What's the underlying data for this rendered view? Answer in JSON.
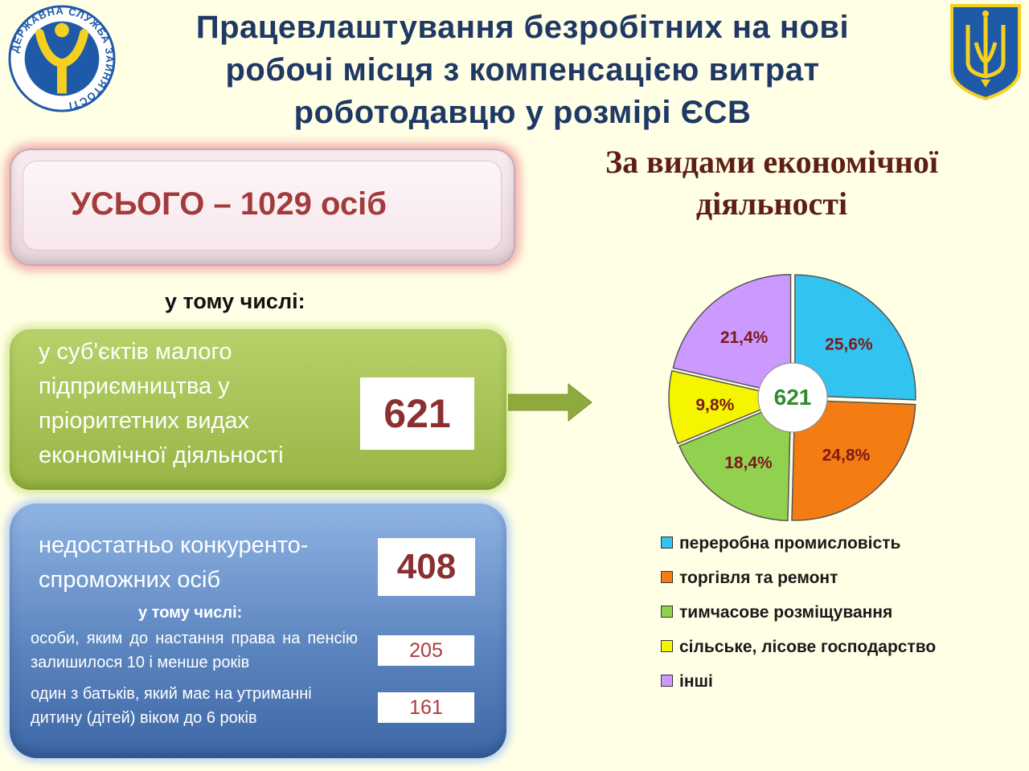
{
  "header": {
    "title_lines": [
      "Працевлаштування безробітних на нові",
      "робочі місця з компенсацією витрат",
      "роботодавцю у розмірі ЄСВ"
    ],
    "logo_text": "ДЕРЖАВНА СЛУЖБА ЗАЙНЯТОСТІ"
  },
  "total": {
    "text": "УСЬОГО – 1029 осіб"
  },
  "including_label": "у тому числі:",
  "small_business": {
    "text": "у суб'єктів малого підприємництва у пріоритетних видах економічної діяльності",
    "value": "621"
  },
  "uncompetitive": {
    "text": "недостатньо конкуренто-спроможних осіб",
    "value": "408",
    "including_label": "у тому числі:",
    "pre_retirement": {
      "text": "особи, яким до настання права на пенсію залишилося 10 і менше років",
      "value": "205"
    },
    "parents": {
      "text": "один з батьків, який має на утриманні дитину (дітей) віком до 6 років",
      "value": "161"
    }
  },
  "chart_data": {
    "type": "pie",
    "title": "За видами економічної діяльності",
    "center_label": "621",
    "categories": [
      "переробна промисловість",
      "торгівля та ремонт",
      "тимчасове розміщування",
      "сільське, лісове господарство",
      "інші"
    ],
    "values": [
      25.6,
      24.8,
      18.4,
      9.8,
      21.4
    ],
    "labels": [
      "25,6%",
      "24,8%",
      "18,4%",
      "9,8%",
      "21,4%"
    ],
    "colors": [
      "#33c3f0",
      "#f57c12",
      "#92d050",
      "#f5f500",
      "#cc99ff"
    ],
    "legend_position": "bottom"
  }
}
